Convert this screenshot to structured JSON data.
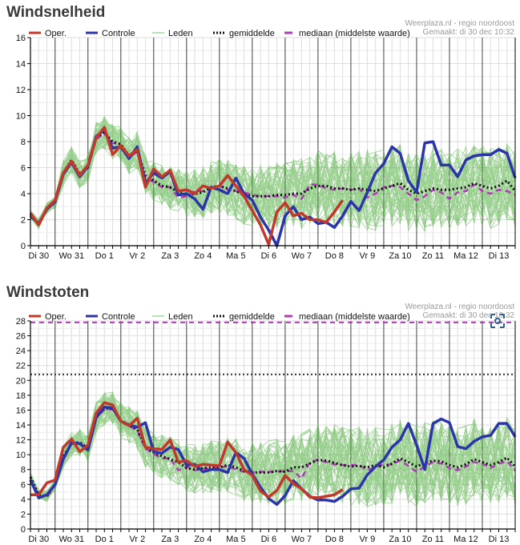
{
  "chart_data": [
    {
      "type": "line",
      "title": "Windsnelheid",
      "source_line1": "Weerplaza.nl - regio noordoost",
      "source_line2": "Gemaakt: di 30 dec 10:32",
      "ylim": [
        0,
        16
      ],
      "yticks": [
        0,
        2,
        4,
        6,
        8,
        10,
        12,
        14,
        16
      ],
      "categories": [
        "Di 30",
        "Wo 31",
        "Do 1",
        "Vr 2",
        "Za 3",
        "Zo 4",
        "Ma 5",
        "Di 6",
        "Wo 7",
        "Do 8",
        "Vr 9",
        "Za 10",
        "Zo 11",
        "Ma 12",
        "Di 13"
      ],
      "xlabel": "",
      "ylabel": "",
      "time_step_hours": 6,
      "grid": true,
      "legend": [
        {
          "name": "Oper.",
          "color": "#c0392b",
          "style": "solid-thick"
        },
        {
          "name": "Controle",
          "color": "#2b35a8",
          "style": "solid-thick"
        },
        {
          "name": "Leden",
          "color": "#8cc98c",
          "style": "solid-thin"
        },
        {
          "name": "gemiddelde",
          "color": "#111111",
          "style": "dotted"
        },
        {
          "name": "mediaan (middelste waarde)",
          "color": "#b03ab8",
          "style": "dashed"
        }
      ],
      "legend_position": "top",
      "series": [
        {
          "name": "Oper.",
          "values": [
            2.5,
            1.6,
            2.9,
            3.5,
            5.6,
            6.5,
            5.4,
            6.2,
            8.3,
            9.1,
            7.0,
            7.7,
            6.9,
            7.4,
            4.5,
            5.9,
            5.3,
            5.8,
            4.2,
            4.3,
            4.0,
            4.6,
            4.4,
            4.6,
            5.4,
            4.6,
            3.8,
            2.7,
            1.6,
            0.1,
            2.6,
            3.3,
            2.3,
            2.5,
            2.0,
            2.0,
            1.8,
            2.6,
            3.5
          ]
        },
        {
          "name": "Controle",
          "values": [
            2.3,
            1.7,
            2.8,
            3.4,
            5.5,
            6.4,
            5.3,
            6.1,
            8.4,
            8.9,
            7.5,
            7.6,
            6.7,
            7.6,
            4.8,
            5.6,
            5.2,
            5.7,
            3.9,
            4.0,
            3.6,
            2.8,
            4.5,
            4.3,
            4.0,
            5.2,
            4.0,
            3.5,
            2.2,
            1.2,
            -0.3,
            2.3,
            3.0,
            2.0,
            2.2,
            1.7,
            1.8,
            1.4,
            2.3,
            3.4,
            2.7,
            4.1,
            5.6,
            6.3,
            7.6,
            7.1,
            5.0,
            4.1,
            7.9,
            8.0,
            6.2,
            6.2,
            5.3,
            6.6,
            6.9,
            7.0,
            7.0,
            7.4,
            7.1,
            5.2
          ]
        },
        {
          "name": "gemiddelde",
          "values": [
            2.4,
            1.7,
            2.9,
            3.3,
            5.6,
            6.6,
            5.5,
            6.0,
            8.3,
            8.7,
            8.0,
            7.8,
            6.9,
            7.3,
            5.4,
            5.0,
            4.6,
            4.5,
            4.1,
            3.9,
            4.0,
            4.1,
            4.5,
            4.6,
            4.4,
            4.2,
            3.9,
            3.8,
            3.8,
            3.8,
            3.9,
            3.9,
            4.0,
            4.0,
            4.4,
            4.6,
            4.6,
            4.4,
            4.4,
            4.3,
            4.4,
            4.3,
            4.2,
            4.4,
            4.6,
            4.8,
            4.3,
            4.0,
            4.2,
            4.4,
            4.3,
            4.3,
            4.4,
            4.5,
            4.8,
            4.6,
            4.4,
            4.6,
            5.0,
            4.2
          ]
        },
        {
          "name": "mediaan (middelste waarde)",
          "values": [
            2.4,
            1.7,
            2.8,
            3.3,
            5.5,
            6.5,
            5.3,
            6.0,
            8.2,
            8.6,
            7.9,
            7.7,
            6.8,
            7.2,
            5.2,
            4.9,
            4.5,
            4.5,
            3.7,
            3.8,
            4.2,
            4.2,
            4.5,
            4.6,
            4.3,
            4.2,
            4.1,
            3.9,
            3.8,
            3.8,
            3.8,
            3.7,
            3.9,
            3.6,
            4.7,
            4.7,
            4.4,
            4.3,
            4.4,
            4.3,
            4.4,
            3.7,
            4.0,
            4.5,
            4.6,
            4.5,
            4.0,
            3.5,
            3.8,
            4.3,
            4.1,
            3.6,
            4.1,
            4.2,
            4.7,
            4.2,
            4.0,
            4.3,
            4.2,
            3.9
          ]
        }
      ]
    },
    {
      "type": "line",
      "title": "Windstoten",
      "source_line1": "Weerplaza.nl - regio noordoost",
      "source_line2": "Gemaakt: di 30 dec 10:32",
      "ylim": [
        0,
        28
      ],
      "yticks": [
        0,
        2,
        4,
        6,
        8,
        10,
        12,
        14,
        16,
        18,
        20,
        22,
        24,
        26,
        28
      ],
      "categories": [
        "Di 30",
        "Wo 31",
        "Do 1",
        "Vr 2",
        "Za 3",
        "Zo 4",
        "Ma 5",
        "Di 6",
        "Wo 7",
        "Do 8",
        "Vr 9",
        "Za 10",
        "Zo 11",
        "Ma 12",
        "Di 13"
      ],
      "xlabel": "",
      "ylabel": "",
      "time_step_hours": 6,
      "grid": true,
      "reference_lines": [
        {
          "style": "dotted",
          "color": "#333333",
          "value": 20.8
        },
        {
          "style": "dashed",
          "color": "#b03ab8",
          "value": 27.8
        }
      ],
      "legend": [
        {
          "name": "Oper.",
          "color": "#c0392b",
          "style": "solid-thick"
        },
        {
          "name": "Controle",
          "color": "#2b35a8",
          "style": "solid-thick"
        },
        {
          "name": "Leden",
          "color": "#8cc98c",
          "style": "solid-thin"
        },
        {
          "name": "gemiddelde",
          "color": "#111111",
          "style": "dotted"
        },
        {
          "name": "mediaan (middelste waarde)",
          "color": "#b03ab8",
          "style": "dashed"
        }
      ],
      "legend_position": "top",
      "series": [
        {
          "name": "Oper.",
          "values": [
            4.6,
            4.6,
            6.2,
            6.6,
            11.0,
            12.1,
            10.4,
            11.3,
            15.6,
            17.0,
            16.7,
            14.5,
            13.9,
            14.9,
            11.0,
            10.8,
            10.7,
            12.0,
            9.0,
            9.2,
            8.4,
            8.7,
            8.6,
            8.5,
            11.7,
            10.3,
            8.0,
            7.2,
            5.1,
            4.3,
            5.2,
            7.2,
            6.1,
            5.4,
            4.3,
            4.2,
            4.4,
            4.6,
            5.3
          ]
        },
        {
          "name": "Controle",
          "values": [
            6.6,
            4.2,
            4.6,
            6.0,
            9.4,
            11.6,
            11.5,
            10.6,
            15.0,
            16.4,
            16.3,
            14.5,
            14.0,
            13.7,
            14.3,
            10.4,
            10.2,
            11.0,
            10.7,
            8.6,
            8.7,
            7.7,
            8.0,
            8.0,
            7.6,
            10.3,
            9.5,
            7.4,
            5.6,
            4.1,
            3.3,
            4.5,
            6.5,
            5.4,
            4.4,
            3.9,
            3.9,
            3.7,
            4.4,
            5.4,
            5.5,
            7.3,
            8.4,
            9.3,
            11.0,
            12.0,
            14.2,
            11.3,
            8.0,
            14.2,
            14.8,
            14.3,
            11.1,
            10.8,
            11.8,
            12.4,
            12.6,
            14.2,
            14.2,
            12.4
          ]
        },
        {
          "name": "gemiddelde",
          "values": [
            7.0,
            4.6,
            4.4,
            6.0,
            9.8,
            11.5,
            11.7,
            10.8,
            15.0,
            16.2,
            16.2,
            14.6,
            14.0,
            13.4,
            11.0,
            10.3,
            9.8,
            9.4,
            9.0,
            8.2,
            8.0,
            8.2,
            8.3,
            8.3,
            8.6,
            8.3,
            7.8,
            7.6,
            7.6,
            7.6,
            7.8,
            7.7,
            8.3,
            8.3,
            8.8,
            9.3,
            9.2,
            8.9,
            8.6,
            8.4,
            8.5,
            8.3,
            8.6,
            8.3,
            8.8,
            9.5,
            9.0,
            8.4,
            8.9,
            9.2,
            9.1,
            8.6,
            8.3,
            8.7,
            9.4,
            9.0,
            8.6,
            9.0,
            9.6,
            8.4
          ]
        },
        {
          "name": "mediaan (middelste waarde)",
          "values": [
            6.8,
            4.5,
            4.3,
            5.9,
            9.7,
            11.4,
            11.6,
            10.7,
            14.9,
            16.1,
            16.1,
            14.5,
            13.9,
            13.2,
            10.8,
            10.1,
            9.5,
            9.5,
            7.9,
            8.4,
            7.9,
            8.1,
            8.2,
            8.2,
            8.5,
            8.0,
            7.7,
            7.6,
            7.7,
            7.7,
            7.7,
            7.8,
            7.8,
            6.8,
            9.0,
            9.3,
            9.0,
            8.7,
            8.6,
            8.6,
            8.6,
            7.9,
            8.3,
            8.7,
            8.7,
            9.2,
            8.5,
            7.7,
            8.4,
            9.0,
            8.8,
            8.2,
            7.9,
            8.4,
            9.0,
            8.8,
            8.2,
            8.8,
            9.1,
            7.9
          ]
        }
      ]
    }
  ],
  "ensemble_members": {
    "count": 50,
    "note": "Leden drawn as thin translucent green lines spread around the mean"
  }
}
